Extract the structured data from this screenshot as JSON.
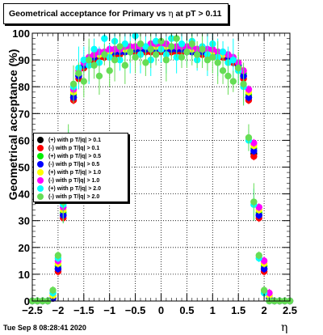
{
  "title": "Geometrical acceptance for Primary vs",
  "title_symbol": "η",
  "title_suffix": "at pT > 0.11",
  "datestamp": "Tue Sep  8 08:28:41 2020",
  "chart_data": {
    "type": "scatter",
    "title": "Geometrical acceptance for Primary vs η at pT > 0.11",
    "xlabel": "η",
    "ylabel": "Geometrical acceptance (%)",
    "xlim": [
      -2.5,
      2.5
    ],
    "ylim": [
      0,
      100
    ],
    "x_ticks": [
      "−2.5",
      "−2",
      "−1.5",
      "−1",
      "−0.5",
      "0",
      "0.5",
      "1",
      "1.5",
      "2",
      "2.5"
    ],
    "y_ticks": [
      "0",
      "10",
      "20",
      "30",
      "40",
      "50",
      "60",
      "70",
      "80",
      "90",
      "100"
    ],
    "grid": true,
    "legend_position": "middle-left",
    "x": [
      -2.5,
      -2.4,
      -2.3,
      -2.2,
      -2.1,
      -2.0,
      -1.9,
      -1.8,
      -1.7,
      -1.6,
      -1.5,
      -1.4,
      -1.3,
      -1.2,
      -1.1,
      -1.0,
      -0.9,
      -0.8,
      -0.7,
      -0.6,
      -0.5,
      -0.4,
      -0.3,
      -0.2,
      -0.1,
      0.0,
      0.1,
      0.2,
      0.3,
      0.4,
      0.5,
      0.6,
      0.7,
      0.8,
      0.9,
      1.0,
      1.1,
      1.2,
      1.3,
      1.4,
      1.5,
      1.6,
      1.7,
      1.8,
      1.9,
      2.0,
      2.1,
      2.2,
      2.3,
      2.4,
      2.5
    ],
    "series": [
      {
        "name": "(+) with p T/|q| > 0.1",
        "color": "#000000",
        "values": [
          0,
          0,
          0,
          0,
          1,
          12,
          32,
          55,
          76,
          84,
          87,
          89,
          90,
          91,
          91,
          92,
          92,
          93,
          93,
          93,
          93,
          93,
          93,
          93,
          93,
          94,
          93,
          93,
          93,
          93,
          93,
          93,
          93,
          93,
          92,
          92,
          91,
          91,
          90,
          89,
          87,
          84,
          76,
          55,
          32,
          12,
          1,
          0,
          0,
          0,
          0
        ]
      },
      {
        "name": "(-) with p T/|q| > 0.1",
        "color": "#ff0000",
        "values": [
          0,
          0,
          0,
          0,
          1,
          11,
          31,
          54,
          75,
          83,
          87,
          89,
          90,
          91,
          91,
          92,
          92,
          92,
          93,
          93,
          93,
          93,
          93,
          93,
          93,
          93,
          93,
          93,
          93,
          93,
          93,
          93,
          92,
          92,
          92,
          92,
          91,
          91,
          90,
          89,
          87,
          83,
          75,
          54,
          31,
          11,
          1,
          0,
          0,
          0,
          0
        ]
      },
      {
        "name": "(+) with p T/|q| > 0.5",
        "color": "#00ee00",
        "values": [
          0,
          0,
          0,
          0,
          2,
          13,
          33,
          57,
          77,
          85,
          88,
          90,
          91,
          92,
          92,
          93,
          93,
          93,
          94,
          94,
          94,
          94,
          94,
          94,
          94,
          94,
          94,
          94,
          94,
          94,
          94,
          94,
          93,
          93,
          93,
          93,
          92,
          92,
          91,
          90,
          88,
          85,
          77,
          57,
          33,
          13,
          2,
          0,
          0,
          0,
          0
        ]
      },
      {
        "name": "(-) with p T/|q| > 0.5",
        "color": "#0000ff",
        "values": [
          0,
          0,
          0,
          0,
          1,
          12,
          32,
          56,
          76,
          84,
          88,
          90,
          91,
          92,
          92,
          92,
          93,
          93,
          93,
          93,
          94,
          94,
          94,
          94,
          94,
          94,
          94,
          94,
          94,
          94,
          93,
          93,
          93,
          93,
          93,
          92,
          92,
          92,
          91,
          90,
          88,
          84,
          76,
          56,
          32,
          12,
          1,
          0,
          0,
          0,
          0
        ]
      },
      {
        "name": "(+) with p T/|q| > 1.0",
        "color": "#ffff00",
        "values": [
          0,
          0,
          0,
          0,
          2,
          14,
          34,
          58,
          78,
          86,
          89,
          91,
          92,
          92,
          93,
          93,
          94,
          94,
          94,
          94,
          95,
          95,
          95,
          95,
          95,
          95,
          95,
          95,
          95,
          95,
          95,
          94,
          94,
          94,
          94,
          93,
          93,
          92,
          92,
          91,
          89,
          86,
          78,
          58,
          34,
          14,
          2,
          0,
          0,
          0,
          0
        ]
      },
      {
        "name": "(-) with p T/|q| > 1.0",
        "color": "#ff00ff",
        "values": [
          0,
          0,
          0,
          0,
          3,
          15,
          35,
          59,
          79,
          86,
          89,
          91,
          92,
          93,
          93,
          94,
          94,
          94,
          95,
          95,
          95,
          95,
          95,
          96,
          96,
          96,
          96,
          95,
          95,
          95,
          95,
          95,
          94,
          94,
          94,
          94,
          93,
          93,
          92,
          91,
          89,
          86,
          79,
          59,
          35,
          15,
          3,
          0,
          0,
          0,
          0
        ]
      },
      {
        "name": "(+) with p T/|q| > 2.0",
        "color": "#00ffff",
        "values": [
          0,
          0,
          0,
          0,
          3,
          16,
          36,
          60,
          80,
          87,
          90,
          88,
          94,
          89,
          98,
          91,
          97,
          90,
          96,
          93,
          99,
          92,
          95,
          90,
          97,
          94,
          92,
          98,
          91,
          96,
          93,
          97,
          90,
          95,
          92,
          96,
          91,
          93,
          89,
          90,
          86,
          80,
          60,
          36,
          16,
          3,
          0,
          0,
          0,
          0,
          0
        ]
      },
      {
        "name": "(-) with p T/|q| > 2.0",
        "color": "#66dd55",
        "values": [
          0,
          0,
          0,
          0,
          4,
          17,
          37,
          61,
          81,
          85,
          82,
          90,
          88,
          84,
          92,
          86,
          90,
          95,
          88,
          93,
          91,
          96,
          89,
          94,
          92,
          97,
          90,
          95,
          98,
          91,
          93,
          96,
          92,
          94,
          90,
          91,
          89,
          86,
          84,
          82,
          87,
          81,
          61,
          37,
          17,
          4,
          0,
          0,
          0,
          0,
          0
        ]
      }
    ]
  }
}
